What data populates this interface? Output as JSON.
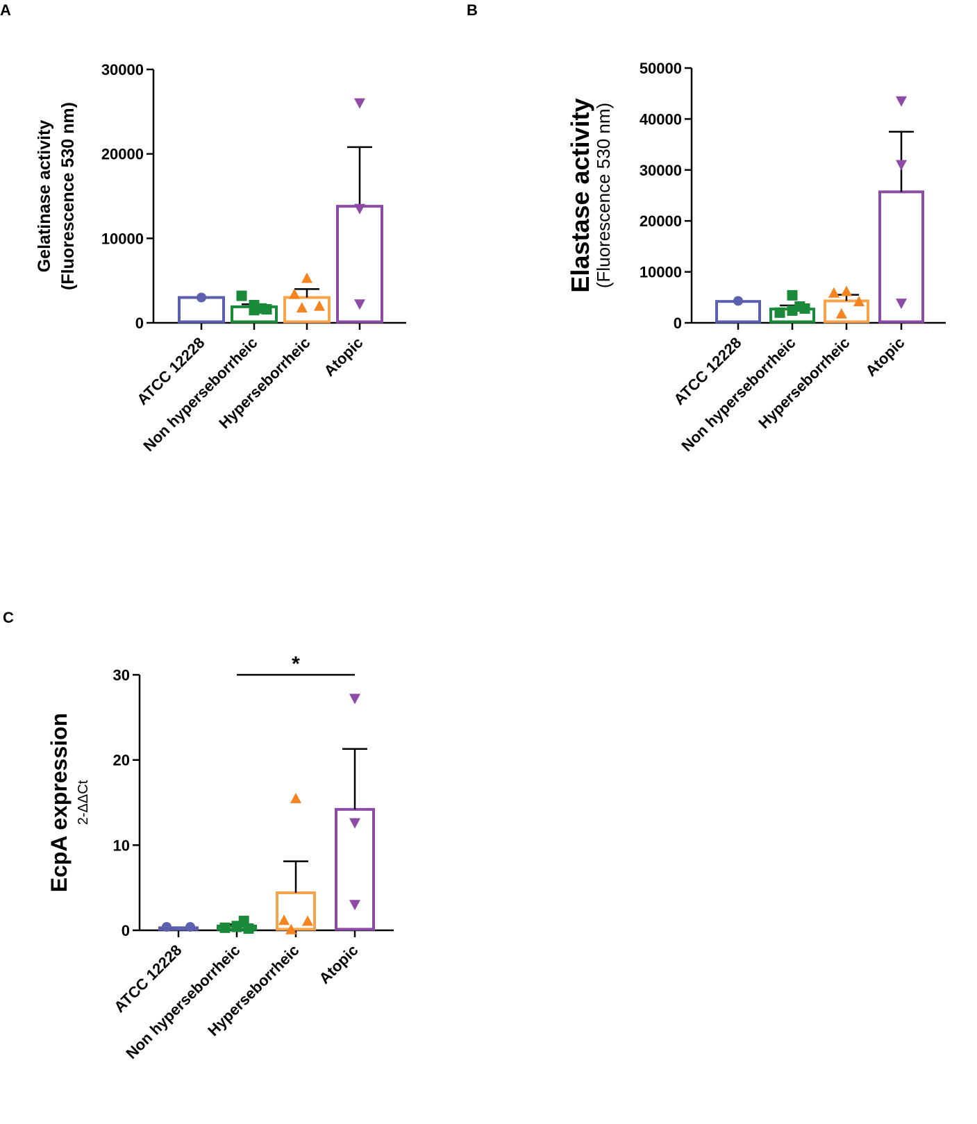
{
  "panels": [
    {
      "letter": "A"
    },
    {
      "letter": "B"
    },
    {
      "letter": "C"
    }
  ],
  "chart_data": [
    {
      "type": "bar",
      "panel": "A",
      "title": "",
      "ylabel": "Gelatinase activity",
      "ylabel_line2": "(Fluorescence 530 nm)",
      "categories": [
        "ATCC 12228",
        "Non hyperseborrheic",
        "Hyperseborrheic",
        "Atopic"
      ],
      "ylim": [
        0,
        30000
      ],
      "yticks": [
        0,
        10000,
        20000,
        30000
      ],
      "ytick_labels": [
        "0",
        "10000",
        "20000",
        "30000"
      ],
      "means": [
        3000,
        1900,
        3000,
        13800
      ],
      "sem": [
        0,
        300,
        1000,
        7000
      ],
      "points": [
        [
          3000
        ],
        [
          2100,
          1700,
          1500,
          3200,
          1600
        ],
        [
          5300,
          3400,
          2000,
          1800
        ],
        [
          26000,
          13500,
          2200
        ]
      ],
      "colors": [
        "#5b5fad",
        "#1a8a3a",
        "#f6a34b",
        "#8e4ba6"
      ],
      "marker_colors": [
        "#5b5fad",
        "#1a8a3a",
        "#f5831f",
        "#8e4ba6"
      ],
      "markers": [
        "circle",
        "square",
        "triangle-up",
        "triangle-down"
      ]
    },
    {
      "type": "bar",
      "panel": "B",
      "title": "",
      "ylabel": "Elastase activity",
      "ylabel_line2": "(Fluorescence 530 nm)",
      "categories": [
        "ATCC 12228",
        "Non hyperseborrheic",
        "Hyperseborrheic",
        "Atopic"
      ],
      "ylim": [
        0,
        50000
      ],
      "yticks": [
        0,
        10000,
        20000,
        30000,
        40000,
        50000
      ],
      "ytick_labels": [
        "0",
        "10000",
        "20000",
        "30000",
        "40000",
        "50000"
      ],
      "means": [
        4200,
        2700,
        4300,
        25700
      ],
      "sem": [
        0,
        700,
        1200,
        11800
      ],
      "points": [
        [
          4300
        ],
        [
          5400,
          3200,
          2400,
          2000,
          2800
        ],
        [
          6200,
          5900,
          4200,
          1800
        ],
        [
          43500,
          31000,
          3800
        ]
      ],
      "colors": [
        "#5b5fad",
        "#1a8a3a",
        "#f6a34b",
        "#8e4ba6"
      ],
      "marker_colors": [
        "#5b5fad",
        "#1a8a3a",
        "#f5831f",
        "#8e4ba6"
      ],
      "markers": [
        "circle",
        "square",
        "triangle-up",
        "triangle-down"
      ]
    },
    {
      "type": "bar",
      "panel": "C",
      "title": "",
      "ylabel": "EcpA expression",
      "ylabel_line2": "2-ΔΔCt",
      "categories": [
        "ATCC 12228",
        "Non hyperseborrheic",
        "Hyperseborrheic",
        "Atopic"
      ],
      "ylim": [
        0,
        30
      ],
      "yticks": [
        0,
        10,
        20,
        30
      ],
      "ytick_labels": [
        "0",
        "10",
        "20",
        "30"
      ],
      "means": [
        0.3,
        0.5,
        4.4,
        14.2
      ],
      "sem": [
        0,
        0.2,
        3.7,
        7.1
      ],
      "points": [
        [
          0.4,
          0.4
        ],
        [
          0.4,
          1.1,
          0.5,
          0.3,
          0.2
        ],
        [
          15.5,
          1.2,
          1.1,
          0.1
        ],
        [
          27.2,
          12.6,
          3.0
        ]
      ],
      "colors": [
        "#5b5fad",
        "#1a8a3a",
        "#f6a34b",
        "#8e4ba6"
      ],
      "marker_colors": [
        "#5b5fad",
        "#1a8a3a",
        "#f5831f",
        "#8e4ba6"
      ],
      "markers": [
        "circle",
        "square",
        "triangle-up",
        "triangle-down"
      ],
      "significance": {
        "from": 1,
        "to": 3,
        "label": "*"
      }
    }
  ]
}
